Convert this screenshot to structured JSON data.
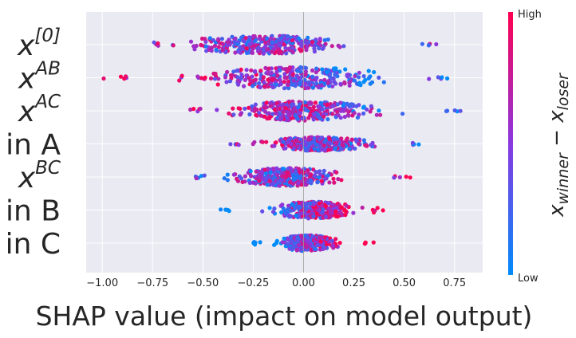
{
  "chart_data": {
    "type": "scatter",
    "subtype": "shap-beeswarm",
    "xlabel": "SHAP value (impact on model output)",
    "xlim": [
      -1.08,
      0.89
    ],
    "xticks": [
      -1.0,
      -0.75,
      -0.5,
      -0.25,
      0.0,
      0.25,
      0.5,
      0.75
    ],
    "xtick_labels": [
      "−1.00",
      "−0.75",
      "−0.50",
      "−0.25",
      "0.00",
      "0.25",
      "0.50",
      "0.75"
    ],
    "grid": true,
    "colors": {
      "low": "#008bfb",
      "mid": "#8a38e0",
      "high": "#ff0051",
      "background": "#eaeaf2",
      "grid": "#ffffff"
    },
    "features": [
      {
        "name": "x^{[0]}",
        "base": "x",
        "sup": "[0]",
        "min": -0.76,
        "max": 0.69,
        "center": -0.2,
        "spread": 0.24,
        "maxHalfWidth": 0.62,
        "colorTrend": 0.0
      },
      {
        "name": "x^{AB}",
        "base": "x",
        "sup": "AB",
        "min": -1.01,
        "max": 0.75,
        "center": -0.05,
        "spread": 0.33,
        "maxHalfWidth": 0.72,
        "colorTrend": -0.6
      },
      {
        "name": "x^{AC}",
        "base": "x",
        "sup": "AC",
        "min": -0.61,
        "max": 0.79,
        "center": 0.0,
        "spread": 0.24,
        "maxHalfWidth": 0.65,
        "colorTrend": -0.4
      },
      {
        "name": "in A",
        "base": "in A",
        "sup": "",
        "min": -0.38,
        "max": 0.62,
        "center": 0.08,
        "spread": 0.17,
        "maxHalfWidth": 0.45,
        "colorTrend": -0.3
      },
      {
        "name": "x^{BC}",
        "base": "x",
        "sup": "BC",
        "min": -0.55,
        "max": 0.53,
        "center": -0.08,
        "spread": 0.18,
        "maxHalfWidth": 0.6,
        "colorTrend": 0.2
      },
      {
        "name": "in B",
        "base": "in B",
        "sup": "",
        "min": -0.42,
        "max": 0.41,
        "center": 0.05,
        "spread": 0.14,
        "maxHalfWidth": 0.55,
        "colorTrend": 0.9
      },
      {
        "name": "in C",
        "base": "in C",
        "sup": "",
        "min": -0.26,
        "max": 0.35,
        "center": 0.02,
        "spread": 0.09,
        "maxHalfWidth": 0.52,
        "colorTrend": 0.85
      }
    ],
    "colorbar": {
      "high_label": "High",
      "low_label": "Low",
      "title": "x_{winner} − x_{loser}"
    }
  }
}
